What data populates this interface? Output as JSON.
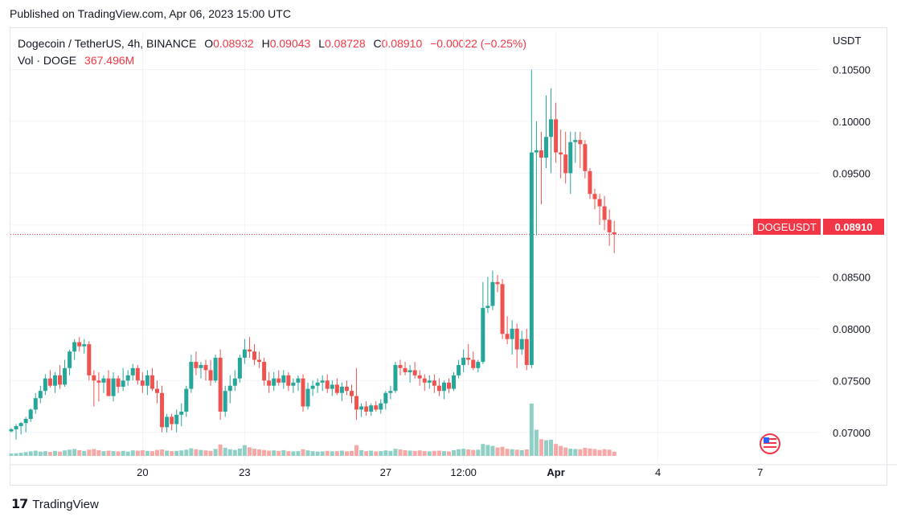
{
  "header": {
    "published": "Published on TradingView.com, Apr 06, 2023 15:00 UTC"
  },
  "legend": {
    "symbol": "Dogecoin / TetherUS, 4h, BINANCE",
    "open_label": "O",
    "open": "0.08932",
    "high_label": "H",
    "high": "0.09043",
    "low_label": "L",
    "low": "0.08728",
    "close_label": "C",
    "close": "0.08910",
    "change": "−0.00022 (−0.25%)",
    "vol_label": "Vol · DOGE",
    "vol_value": "367.496M"
  },
  "axis": {
    "currency": "USDT"
  },
  "price_tag": {
    "symbol": "DOGEUSDT",
    "price": "0.08910"
  },
  "footer": {
    "brand": "TradingView"
  },
  "colors": {
    "up": "#26a69a",
    "down": "#ef5350",
    "vol_up": "#8fcfc6",
    "vol_down": "#f5a8a6",
    "grid": "#f0f3fa"
  },
  "chart_data": {
    "type": "candlestick",
    "title": "Dogecoin / TetherUS, 4h, BINANCE",
    "ylabel": "USDT",
    "ylim": [
      0.0675,
      0.1055
    ],
    "yticks": [
      "0.10500",
      "0.10000",
      "0.09500",
      "0.09000",
      "0.08500",
      "0.08000",
      "0.07500",
      "0.07000"
    ],
    "xticks": [
      {
        "label": "20",
        "index": 27
      },
      {
        "label": "23",
        "index": 48
      },
      {
        "label": "27",
        "index": 77
      },
      {
        "label": "12:00",
        "index": 93
      },
      {
        "label": "Apr",
        "index": 112
      },
      {
        "label": "4",
        "index": 133
      },
      {
        "label": "7",
        "index": 154
      }
    ],
    "series": [
      {
        "values": [
          [
            0.0701,
            0.0704,
            0.07,
            0.0703,
            1.0
          ],
          [
            0.0703,
            0.0708,
            0.0693,
            0.0706,
            1.1
          ],
          [
            0.0706,
            0.071,
            0.0698,
            0.0709,
            1.3
          ],
          [
            0.0709,
            0.0715,
            0.07,
            0.0713,
            1.6
          ],
          [
            0.0713,
            0.0723,
            0.071,
            0.0722,
            1.9
          ],
          [
            0.0722,
            0.0738,
            0.0718,
            0.0733,
            2.2
          ],
          [
            0.0733,
            0.0745,
            0.0728,
            0.074,
            1.8
          ],
          [
            0.074,
            0.0756,
            0.0736,
            0.0752,
            2.0
          ],
          [
            0.0752,
            0.076,
            0.0743,
            0.0745,
            1.7
          ],
          [
            0.0745,
            0.0758,
            0.0738,
            0.0755,
            2.1
          ],
          [
            0.0755,
            0.0765,
            0.0742,
            0.0746,
            1.8
          ],
          [
            0.0746,
            0.077,
            0.0744,
            0.0762,
            2.3
          ],
          [
            0.0762,
            0.078,
            0.0755,
            0.0778,
            2.6
          ],
          [
            0.0778,
            0.079,
            0.077,
            0.0787,
            2.9
          ],
          [
            0.0787,
            0.0792,
            0.0778,
            0.0783,
            2.4
          ],
          [
            0.0783,
            0.079,
            0.0776,
            0.0785,
            2.1
          ],
          [
            0.0785,
            0.0788,
            0.075,
            0.0755,
            2.6
          ],
          [
            0.0755,
            0.076,
            0.0725,
            0.075,
            2.9
          ],
          [
            0.075,
            0.0758,
            0.073,
            0.0748,
            2.4
          ],
          [
            0.0748,
            0.0755,
            0.0738,
            0.0752,
            2.0
          ],
          [
            0.0752,
            0.076,
            0.0738,
            0.0735,
            2.2
          ],
          [
            0.0735,
            0.0758,
            0.073,
            0.0752,
            2.0
          ],
          [
            0.0752,
            0.0755,
            0.0738,
            0.0744,
            1.9
          ],
          [
            0.0744,
            0.0762,
            0.074,
            0.075,
            2.1
          ],
          [
            0.075,
            0.076,
            0.0745,
            0.0755,
            1.8
          ],
          [
            0.0755,
            0.0766,
            0.075,
            0.0762,
            2.3
          ],
          [
            0.0762,
            0.0765,
            0.0746,
            0.075,
            2.2
          ],
          [
            0.075,
            0.0758,
            0.0738,
            0.0745,
            2.4
          ],
          [
            0.0745,
            0.076,
            0.0736,
            0.0755,
            2.1
          ],
          [
            0.0755,
            0.0762,
            0.074,
            0.0742,
            2.0
          ],
          [
            0.0742,
            0.075,
            0.0728,
            0.0738,
            2.5
          ],
          [
            0.0738,
            0.0745,
            0.07,
            0.0705,
            2.7
          ],
          [
            0.0705,
            0.0718,
            0.07,
            0.0715,
            2.2
          ],
          [
            0.0715,
            0.0718,
            0.0702,
            0.0708,
            2.0
          ],
          [
            0.0708,
            0.0722,
            0.07,
            0.0717,
            2.1
          ],
          [
            0.0717,
            0.0728,
            0.0706,
            0.072,
            2.3
          ],
          [
            0.072,
            0.0745,
            0.0715,
            0.0742,
            2.6
          ],
          [
            0.0742,
            0.0775,
            0.0738,
            0.0768,
            3.2
          ],
          [
            0.0768,
            0.0778,
            0.0755,
            0.0762,
            2.8
          ],
          [
            0.0762,
            0.0768,
            0.0752,
            0.0765,
            2.5
          ],
          [
            0.0765,
            0.077,
            0.075,
            0.076,
            2.3
          ],
          [
            0.076,
            0.077,
            0.0745,
            0.075,
            2.1
          ],
          [
            0.075,
            0.0775,
            0.0748,
            0.0772,
            2.9
          ],
          [
            0.0772,
            0.078,
            0.0712,
            0.072,
            4.8
          ],
          [
            0.072,
            0.0745,
            0.0715,
            0.074,
            3.4
          ],
          [
            0.074,
            0.0755,
            0.0728,
            0.0745,
            2.8
          ],
          [
            0.0745,
            0.076,
            0.074,
            0.0752,
            2.5
          ],
          [
            0.0752,
            0.0775,
            0.0748,
            0.0772,
            3.1
          ],
          [
            0.0772,
            0.079,
            0.0766,
            0.078,
            4.5
          ],
          [
            0.078,
            0.0792,
            0.0772,
            0.0778,
            3.6
          ],
          [
            0.0778,
            0.0785,
            0.0765,
            0.077,
            3.0
          ],
          [
            0.077,
            0.0778,
            0.0762,
            0.0768,
            2.7
          ],
          [
            0.0768,
            0.0772,
            0.0745,
            0.075,
            2.5
          ],
          [
            0.075,
            0.0758,
            0.0738,
            0.0745,
            2.2
          ],
          [
            0.0745,
            0.0758,
            0.074,
            0.0752,
            2.3
          ],
          [
            0.0752,
            0.076,
            0.0745,
            0.0748,
            2.1
          ],
          [
            0.0748,
            0.076,
            0.0742,
            0.0755,
            2.4
          ],
          [
            0.0755,
            0.0758,
            0.074,
            0.0745,
            2.0
          ],
          [
            0.0745,
            0.0752,
            0.0738,
            0.0748,
            1.9
          ],
          [
            0.0748,
            0.0755,
            0.074,
            0.0752,
            2.0
          ],
          [
            0.0752,
            0.0756,
            0.072,
            0.0725,
            2.8
          ],
          [
            0.0725,
            0.0748,
            0.0722,
            0.0742,
            2.3
          ],
          [
            0.0742,
            0.075,
            0.0735,
            0.0745,
            2.0
          ],
          [
            0.0745,
            0.0752,
            0.0738,
            0.0748,
            1.8
          ],
          [
            0.0748,
            0.0755,
            0.074,
            0.075,
            1.9
          ],
          [
            0.075,
            0.0756,
            0.0738,
            0.0742,
            2.1
          ],
          [
            0.0742,
            0.075,
            0.0735,
            0.0746,
            1.9
          ],
          [
            0.0746,
            0.0752,
            0.0736,
            0.0738,
            2.0
          ],
          [
            0.0738,
            0.0748,
            0.073,
            0.0744,
            2.2
          ],
          [
            0.0744,
            0.075,
            0.0736,
            0.074,
            1.9
          ],
          [
            0.074,
            0.0746,
            0.0728,
            0.0735,
            2.1
          ],
          [
            0.0735,
            0.0762,
            0.0712,
            0.0722,
            4.5
          ],
          [
            0.0722,
            0.0728,
            0.0715,
            0.0725,
            2.4
          ],
          [
            0.0725,
            0.073,
            0.0716,
            0.072,
            2.0
          ],
          [
            0.072,
            0.0728,
            0.0716,
            0.0726,
            2.2
          ],
          [
            0.0726,
            0.073,
            0.072,
            0.0722,
            1.9
          ],
          [
            0.0722,
            0.0732,
            0.0718,
            0.0728,
            2.0
          ],
          [
            0.0728,
            0.074,
            0.0722,
            0.0738,
            2.3
          ],
          [
            0.0738,
            0.0745,
            0.0732,
            0.074,
            2.1
          ],
          [
            0.074,
            0.0768,
            0.0738,
            0.0765,
            3.0
          ],
          [
            0.0765,
            0.077,
            0.0755,
            0.0762,
            2.7
          ],
          [
            0.0762,
            0.0768,
            0.0755,
            0.0758,
            2.4
          ],
          [
            0.0758,
            0.0765,
            0.0748,
            0.076,
            2.2
          ],
          [
            0.076,
            0.0768,
            0.0752,
            0.0755,
            2.1
          ],
          [
            0.0755,
            0.076,
            0.0745,
            0.0752,
            2.3
          ],
          [
            0.0752,
            0.0756,
            0.074,
            0.0748,
            2.0
          ],
          [
            0.0748,
            0.0755,
            0.0742,
            0.075,
            1.9
          ],
          [
            0.075,
            0.0756,
            0.0738,
            0.0745,
            2.1
          ],
          [
            0.0745,
            0.0752,
            0.0735,
            0.074,
            2.2
          ],
          [
            0.074,
            0.075,
            0.0732,
            0.0748,
            2.0
          ],
          [
            0.0748,
            0.0752,
            0.0738,
            0.0742,
            1.9
          ],
          [
            0.0742,
            0.0758,
            0.074,
            0.0755,
            2.4
          ],
          [
            0.0755,
            0.077,
            0.0752,
            0.0765,
            2.8
          ],
          [
            0.0765,
            0.078,
            0.0758,
            0.0772,
            3.0
          ],
          [
            0.0772,
            0.0785,
            0.0765,
            0.077,
            2.7
          ],
          [
            0.077,
            0.0778,
            0.076,
            0.0762,
            2.5
          ],
          [
            0.0762,
            0.077,
            0.0758,
            0.0768,
            2.6
          ],
          [
            0.0768,
            0.0845,
            0.0766,
            0.082,
            5.0
          ],
          [
            0.082,
            0.085,
            0.0815,
            0.0822,
            4.6
          ],
          [
            0.0822,
            0.0856,
            0.0818,
            0.0845,
            4.2
          ],
          [
            0.0845,
            0.0852,
            0.0835,
            0.0843,
            3.5
          ],
          [
            0.0843,
            0.0848,
            0.079,
            0.0795,
            3.8
          ],
          [
            0.0795,
            0.0812,
            0.0785,
            0.079,
            3.0
          ],
          [
            0.079,
            0.0808,
            0.0775,
            0.08,
            2.8
          ],
          [
            0.08,
            0.0805,
            0.0762,
            0.078,
            2.6
          ],
          [
            0.078,
            0.0798,
            0.0775,
            0.079,
            2.4
          ],
          [
            0.079,
            0.08,
            0.076,
            0.0765,
            2.7
          ],
          [
            0.0765,
            0.105,
            0.0762,
            0.097,
            22.0
          ],
          [
            0.097,
            0.1,
            0.089,
            0.0972,
            11.0
          ],
          [
            0.0972,
            0.099,
            0.092,
            0.0965,
            7.0
          ],
          [
            0.0965,
            0.1025,
            0.0955,
            0.0985,
            6.6
          ],
          [
            0.0985,
            0.1032,
            0.095,
            0.1002,
            6.8
          ],
          [
            0.1002,
            0.1018,
            0.096,
            0.097,
            5.0
          ],
          [
            0.097,
            0.0992,
            0.0945,
            0.0968,
            4.2
          ],
          [
            0.0968,
            0.099,
            0.094,
            0.095,
            3.5
          ],
          [
            0.095,
            0.099,
            0.093,
            0.098,
            3.0
          ],
          [
            0.098,
            0.099,
            0.096,
            0.0982,
            2.9
          ],
          [
            0.0982,
            0.099,
            0.0955,
            0.0978,
            2.8
          ],
          [
            0.0978,
            0.0982,
            0.0945,
            0.0952,
            3.4
          ],
          [
            0.0952,
            0.0955,
            0.0925,
            0.093,
            3.1
          ],
          [
            0.093,
            0.0935,
            0.0915,
            0.0925,
            2.9
          ],
          [
            0.0925,
            0.093,
            0.09,
            0.0918,
            2.5
          ],
          [
            0.0918,
            0.0928,
            0.0895,
            0.0905,
            2.8
          ],
          [
            0.0905,
            0.0915,
            0.088,
            0.0893,
            2.6
          ],
          [
            0.0893,
            0.0904,
            0.0873,
            0.0891,
            1.8
          ]
        ]
      }
    ],
    "volume_series_label": "Vol · DOGE"
  }
}
